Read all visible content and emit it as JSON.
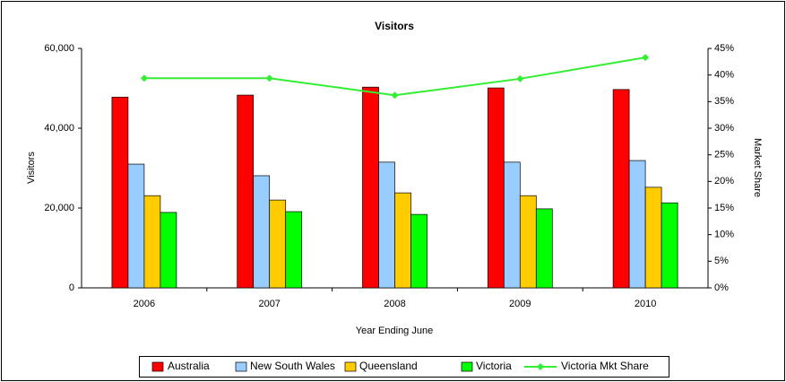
{
  "chart_data": {
    "type": "bar",
    "title": "Visitors",
    "x_label": "Year Ending June",
    "y_label": "Visitors",
    "y2_label": "Market Share",
    "categories": [
      "2006",
      "2007",
      "2008",
      "2009",
      "2010"
    ],
    "series": [
      {
        "name": "Australia",
        "color": "#ff0000",
        "values": [
          47800,
          48300,
          50300,
          50100,
          49700
        ]
      },
      {
        "name": "New South Wales",
        "color": "#99ccff",
        "values": [
          31000,
          28100,
          31500,
          31500,
          31900
        ]
      },
      {
        "name": "Queensland",
        "color": "#ffcc00",
        "values": [
          23100,
          22000,
          23800,
          23100,
          25200
        ]
      },
      {
        "name": "Victoria",
        "color": "#00ff00",
        "values": [
          18900,
          19100,
          18400,
          19800,
          21300
        ]
      },
      {
        "name": "Victoria Mkt Share",
        "type": "line",
        "axis": "y2",
        "color": "#33ee33",
        "values": [
          39.4,
          39.4,
          36.2,
          39.3,
          43.3
        ]
      }
    ],
    "ylim": [
      0,
      60000
    ],
    "yticks": [
      0,
      {
        "value": 20000,
        "label": "20,000"
      },
      {
        "value": 40000,
        "label": "40,000"
      },
      {
        "value": 60000,
        "label": "60,000"
      }
    ],
    "y2lim": [
      0,
      45
    ],
    "y2ticks": [
      {
        "value": 0,
        "label": "0%"
      },
      {
        "value": 5,
        "label": "5%"
      },
      {
        "value": 10,
        "label": "10%"
      },
      {
        "value": 15,
        "label": "15%"
      },
      {
        "value": 20,
        "label": "20%"
      },
      {
        "value": 25,
        "label": "25%"
      },
      {
        "value": 30,
        "label": "30%"
      },
      {
        "value": 35,
        "label": "35%"
      },
      {
        "value": 40,
        "label": "40%"
      },
      {
        "value": 45,
        "label": "45%"
      }
    ],
    "legend": "bottom"
  }
}
